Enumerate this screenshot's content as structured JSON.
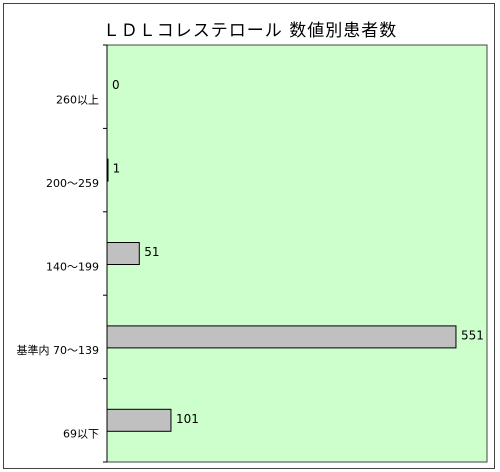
{
  "chart_data": {
    "type": "bar",
    "orientation": "horizontal",
    "title": "ＬＤＬコレステロール 数値別患者数",
    "categories": [
      "260以上",
      "200～259",
      "140～199",
      "基準内 70～139",
      "69以下"
    ],
    "values": [
      0,
      1,
      51,
      551,
      101
    ],
    "xlim": [
      0,
      600
    ],
    "xlabel": "",
    "ylabel": "",
    "grid": false,
    "legend": "none",
    "colors": {
      "plot_background": "#ccffcc",
      "bar_fill": "#c0c0c0",
      "bar_stroke": "#000000",
      "axis": "#000000",
      "frame": "#444444"
    }
  }
}
